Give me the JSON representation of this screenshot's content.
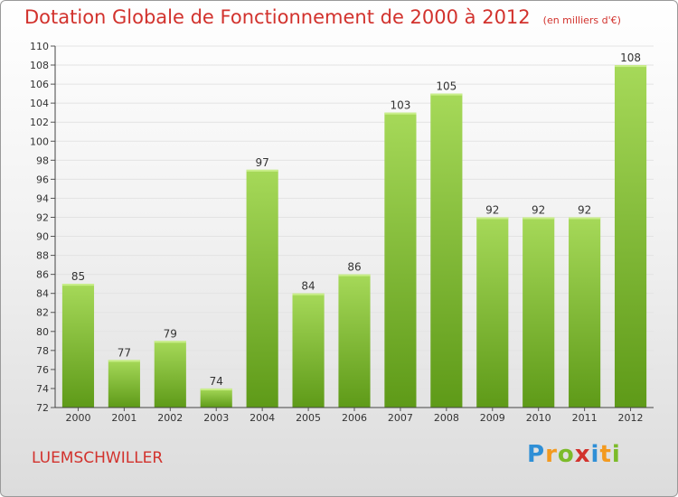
{
  "header": {
    "title": "Dotation Globale de Fonctionnement de 2000 à 2012",
    "subtitle": "(en milliers d'€)"
  },
  "footer": {
    "town": "LUEMSCHWILLER",
    "logo": [
      "P",
      "r",
      "o",
      "x",
      "i",
      "t",
      "i"
    ]
  },
  "colors": {
    "title": "#d2322d",
    "bar_top": "#a6d959",
    "bar_bottom": "#5e9a18",
    "grid": "#e3e3e3"
  },
  "chart_data": {
    "type": "bar",
    "title": "Dotation Globale de Fonctionnement de 2000 à 2012",
    "subtitle": "(en milliers d'€)",
    "categories": [
      "2000",
      "2001",
      "2002",
      "2003",
      "2004",
      "2005",
      "2006",
      "2007",
      "2008",
      "2009",
      "2010",
      "2011",
      "2012"
    ],
    "values": [
      85,
      77,
      79,
      74,
      97,
      84,
      86,
      103,
      105,
      92,
      92,
      92,
      108
    ],
    "ylim": [
      72,
      110
    ],
    "yticks": [
      72,
      74,
      76,
      78,
      80,
      82,
      84,
      86,
      88,
      90,
      92,
      94,
      96,
      98,
      100,
      102,
      104,
      106,
      108,
      110
    ],
    "grid": true
  }
}
